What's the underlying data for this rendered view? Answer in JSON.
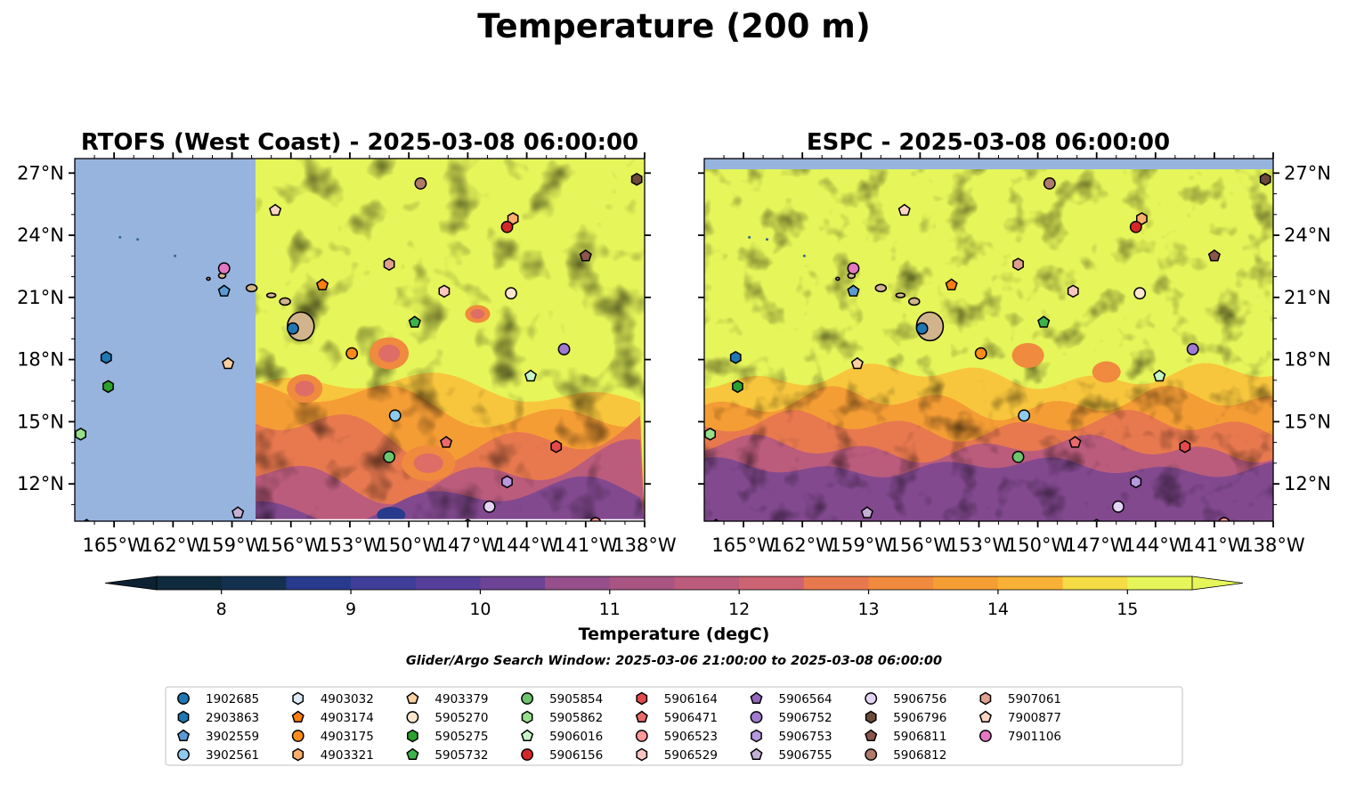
{
  "title": "Temperature (200 m)",
  "search_window": "Glider/Argo Search Window: 2025-03-06 21:00:00 to 2025-03-08 06:00:00",
  "colorbar": {
    "label": "Temperature (degC)",
    "ticks": [
      "8",
      "9",
      "10",
      "11",
      "12",
      "13",
      "14",
      "15"
    ],
    "min": 7.5,
    "max": 15.5,
    "step": 0.5,
    "colors": [
      "#0f2a3c",
      "#14304f",
      "#1b3570",
      "#283a8c",
      "#3f3e98",
      "#553f98",
      "#6d4395",
      "#82498f",
      "#964f8a",
      "#a95584",
      "#bb5c7d",
      "#cc6373",
      "#dd6d66",
      "#e8794f",
      "#f08a3e",
      "#f59d35",
      "#f8b136",
      "#f8c63d",
      "#f5dc45",
      "#e6f55a"
    ]
  },
  "chart_data": [
    {
      "type": "heatmap",
      "title": "RTOFS (West Coast) - 2025-03-08 06:00:00",
      "x_ticks": [
        "165°W",
        "162°W",
        "159°W",
        "156°W",
        "153°W",
        "150°W",
        "147°W",
        "144°W",
        "141°W",
        "138°W"
      ],
      "y_ticks": [
        "27°N",
        "24°N",
        "21°N",
        "18°N",
        "15°N",
        "12°N"
      ],
      "xlim": [
        -167,
        -138
      ],
      "ylim": [
        10.2,
        27.7
      ],
      "no_data_west_of": -157.8,
      "note": "Temperature field at 200 m depth; mostly above 15 degC north of 16°N, cooler (10–13 degC) to the south"
    },
    {
      "type": "heatmap",
      "title": "ESPC - 2025-03-08 06:00:00",
      "x_ticks": [
        "165°W",
        "162°W",
        "159°W",
        "156°W",
        "153°W",
        "150°W",
        "147°W",
        "144°W",
        "141°W",
        "138°W"
      ],
      "y_ticks": [
        "27°N",
        "24°N",
        "21°N",
        "18°N",
        "15°N",
        "12°N"
      ],
      "xlim": [
        -167,
        -138
      ],
      "ylim": [
        10.2,
        27.7
      ],
      "note": "Temperature field at 200 m depth; above 15 degC north of 16°N, cooling to ~10 degC south of 14°N"
    }
  ],
  "floats": [
    {
      "id": "1902685",
      "marker": "circle",
      "color": "#1f77b4",
      "lon": -155.9,
      "lat": 19.5
    },
    {
      "id": "2903863",
      "marker": "hexagon",
      "color": "#1f77b4",
      "lon": -165.4,
      "lat": 18.1
    },
    {
      "id": "3902559",
      "marker": "pentagon",
      "color": "#5b9bd5",
      "lon": -159.4,
      "lat": 21.3
    },
    {
      "id": "3902561",
      "marker": "circle",
      "color": "#8ec9f0",
      "lon": -150.7,
      "lat": 15.3
    },
    {
      "id": "4903032",
      "marker": "hexagon",
      "color": "#deebf7",
      "lon": -147.0,
      "lat": 10.0
    },
    {
      "id": "4903174",
      "marker": "pentagon",
      "color": "#ff7f0e",
      "lon": -154.4,
      "lat": 21.6
    },
    {
      "id": "4903175",
      "marker": "circle",
      "color": "#ff8c1a",
      "lon": -152.9,
      "lat": 18.3
    },
    {
      "id": "4903321",
      "marker": "hexagon",
      "color": "#fdae6b",
      "lon": -144.7,
      "lat": 24.8
    },
    {
      "id": "4903379",
      "marker": "pentagon",
      "color": "#fdd0a2",
      "lon": -159.2,
      "lat": 17.8
    },
    {
      "id": "5905270",
      "marker": "circle",
      "color": "#fee6ce",
      "lon": -144.8,
      "lat": 21.2
    },
    {
      "id": "5905275",
      "marker": "hexagon",
      "color": "#2ca02c",
      "lon": -165.3,
      "lat": 16.7
    },
    {
      "id": "5905732",
      "marker": "pentagon",
      "color": "#3cb44b",
      "lon": -149.7,
      "lat": 19.8
    },
    {
      "id": "5905854",
      "marker": "circle",
      "color": "#6cc46c",
      "lon": -151.0,
      "lat": 13.3
    },
    {
      "id": "5905862",
      "marker": "hexagon",
      "color": "#98df8a",
      "lon": -166.7,
      "lat": 14.4
    },
    {
      "id": "5906016",
      "marker": "pentagon",
      "color": "#c7f5c7",
      "lon": -143.8,
      "lat": 17.2
    },
    {
      "id": "5906156",
      "marker": "circle",
      "color": "#d62728",
      "lon": -145.0,
      "lat": 24.4
    },
    {
      "id": "5906164",
      "marker": "hexagon",
      "color": "#e34a4a",
      "lon": -142.5,
      "lat": 13.8
    },
    {
      "id": "5906471",
      "marker": "pentagon",
      "color": "#e86a6a",
      "lon": -148.1,
      "lat": 14.0
    },
    {
      "id": "5906523",
      "marker": "circle",
      "color": "#ff9896",
      "lon": -140.5,
      "lat": 10.1
    },
    {
      "id": "5906529",
      "marker": "hexagon",
      "color": "#fcc5c0",
      "lon": -148.2,
      "lat": 21.3
    },
    {
      "id": "5906564",
      "marker": "pentagon",
      "color": "#9467bd",
      "lon": -166.4,
      "lat": 10.0
    },
    {
      "id": "5906752",
      "marker": "circle",
      "color": "#a07ad0",
      "lon": -142.1,
      "lat": 18.5
    },
    {
      "id": "5906753",
      "marker": "hexagon",
      "color": "#b899e0",
      "lon": -145.0,
      "lat": 12.1
    },
    {
      "id": "5906755",
      "marker": "pentagon",
      "color": "#c5b0d5",
      "lon": -158.7,
      "lat": 10.6
    },
    {
      "id": "5906756",
      "marker": "circle",
      "color": "#e5d5f5",
      "lon": -145.9,
      "lat": 10.9
    },
    {
      "id": "5906796",
      "marker": "hexagon",
      "color": "#6b4a3a",
      "lon": -138.4,
      "lat": 26.7
    },
    {
      "id": "5906811",
      "marker": "pentagon",
      "color": "#8c564b",
      "lon": -141.0,
      "lat": 23.0
    },
    {
      "id": "5906812",
      "marker": "circle",
      "color": "#b07a6a",
      "lon": -149.4,
      "lat": 26.5
    },
    {
      "id": "5907061",
      "marker": "hexagon",
      "color": "#e0a090",
      "lon": -151.0,
      "lat": 22.6
    },
    {
      "id": "7900877",
      "marker": "pentagon",
      "color": "#fcd5c5",
      "lon": -156.8,
      "lat": 25.2
    },
    {
      "id": "7901106",
      "marker": "circle",
      "color": "#e377c2",
      "lon": -159.4,
      "lat": 22.4
    }
  ]
}
